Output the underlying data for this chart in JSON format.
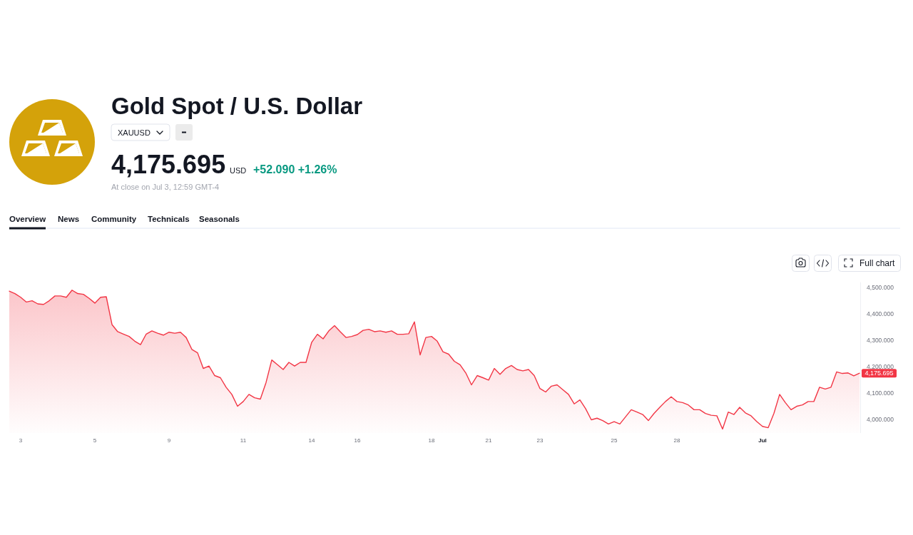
{
  "chart_data": {
    "type": "area",
    "title": "Gold Spot / U.S. Dollar",
    "subtitle": "XAUUSD",
    "categories": [
      null,
      null,
      "3",
      null,
      null,
      null,
      null,
      null,
      null,
      null,
      null,
      null,
      null,
      null,
      null,
      "5",
      null,
      null,
      null,
      null,
      null,
      null,
      null,
      null,
      null,
      null,
      null,
      null,
      "9",
      null,
      null,
      null,
      null,
      null,
      null,
      null,
      null,
      null,
      null,
      null,
      null,
      "11",
      null,
      null,
      null,
      null,
      null,
      null,
      null,
      null,
      null,
      null,
      null,
      "14",
      null,
      null,
      null,
      null,
      null,
      null,
      null,
      "16",
      null,
      null,
      null,
      null,
      null,
      null,
      null,
      null,
      null,
      null,
      null,
      null,
      "18",
      null,
      null,
      null,
      null,
      null,
      null,
      null,
      null,
      null,
      "21",
      null,
      null,
      null,
      null,
      null,
      null,
      null,
      null,
      "23",
      null,
      null,
      null,
      null,
      null,
      null,
      null,
      null,
      null,
      null,
      null,
      null,
      "25",
      null,
      null,
      null,
      null,
      null,
      null,
      null,
      null,
      null,
      null,
      "28",
      null,
      null,
      null,
      null,
      null,
      null,
      null,
      null,
      null,
      null,
      null,
      null,
      null,
      null,
      "Jul",
      null,
      null,
      null,
      null,
      null,
      null,
      null,
      null,
      null,
      null,
      null,
      null,
      null,
      null,
      null,
      null,
      null
    ],
    "series": [
      {
        "color": "#f23645",
        "values": [
          4486,
          4477,
          4463,
          4445,
          4450,
          4438,
          4436,
          4450,
          4468,
          4468,
          4463,
          4490,
          4477,
          4474,
          4459,
          4441,
          4463,
          4465,
          4360,
          4333,
          4324,
          4315,
          4297,
          4284,
          4324,
          4336,
          4327,
          4320,
          4331,
          4327,
          4331,
          4311,
          4266,
          4253,
          4194,
          4203,
          4167,
          4159,
          4123,
          4096,
          4051,
          4069,
          4096,
          4083,
          4078,
          4141,
          4226,
          4208,
          4190,
          4217,
          4203,
          4217,
          4217,
          4293,
          4323,
          4306,
          4336,
          4356,
          4333,
          4311,
          4315,
          4322,
          4338,
          4342,
          4333,
          4336,
          4331,
          4336,
          4323,
          4323,
          4325,
          4370,
          4245,
          4311,
          4315,
          4297,
          4257,
          4248,
          4221,
          4208,
          4177,
          4132,
          4167,
          4159,
          4150,
          4194,
          4172,
          4194,
          4205,
          4190,
          4185,
          4190,
          4167,
          4118,
          4105,
          4127,
          4132,
          4114,
          4096,
          4060,
          4075,
          4042,
          4000,
          4006,
          3997,
          3984,
          3993,
          3984,
          4011,
          4038,
          4029,
          4020,
          3997,
          4024,
          4047,
          4069,
          4087,
          4069,
          4065,
          4056,
          4038,
          4038,
          4024,
          4017,
          4015,
          3965,
          4029,
          4020,
          4047,
          4026,
          4015,
          3993,
          3975,
          3970,
          4024,
          4096,
          4065,
          4038,
          4051,
          4056,
          4069,
          4069,
          4123,
          4116,
          4123,
          4181,
          4175,
          4177,
          4166,
          4176
        ]
      }
    ],
    "ylim": [
      3950,
      4520
    ],
    "yticks": [
      {
        "value": 4000,
        "label": "4,000.000"
      },
      {
        "value": 4100,
        "label": "4,100.000"
      },
      {
        "value": 4200,
        "label": "4,200.000"
      },
      {
        "value": 4300,
        "label": "4,300.000"
      },
      {
        "value": 4400,
        "label": "4,400.000"
      },
      {
        "value": 4500,
        "label": "4,500.000"
      }
    ],
    "annotations": [
      "4,175.695",
      "USD",
      "+52.090 +1.26%",
      "At close on Jul 3, 12:59 GMT-4",
      "Overview",
      "News",
      "Community",
      "Technicals",
      "Seasonals",
      "Full chart",
      "4,175.695"
    ]
  }
}
